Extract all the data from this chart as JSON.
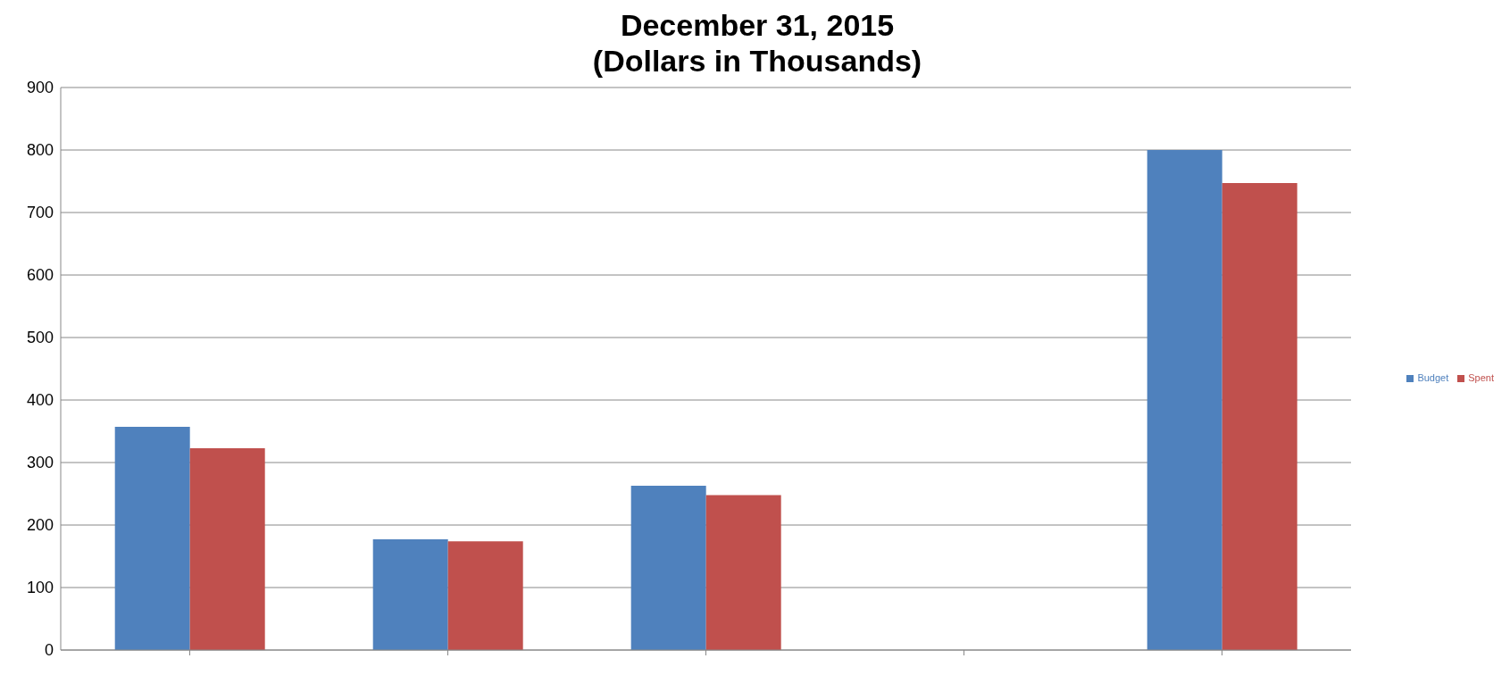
{
  "chart_data": {
    "type": "bar",
    "title": "December 31, 2015\n(Dollars in Thousands)",
    "categories": [
      null,
      null,
      null,
      null,
      null
    ],
    "series": [
      {
        "name": "Budget",
        "color": "#4f81bd",
        "values": [
          357,
          177,
          263,
          null,
          800
        ]
      },
      {
        "name": "Spent",
        "color": "#c0504d",
        "values": [
          323,
          174,
          248,
          null,
          747
        ]
      }
    ],
    "ylim": [
      0,
      900
    ],
    "yticks": [
      0,
      100,
      200,
      300,
      400,
      500,
      600,
      700,
      800,
      900
    ],
    "grid": "y",
    "legend": "right"
  }
}
